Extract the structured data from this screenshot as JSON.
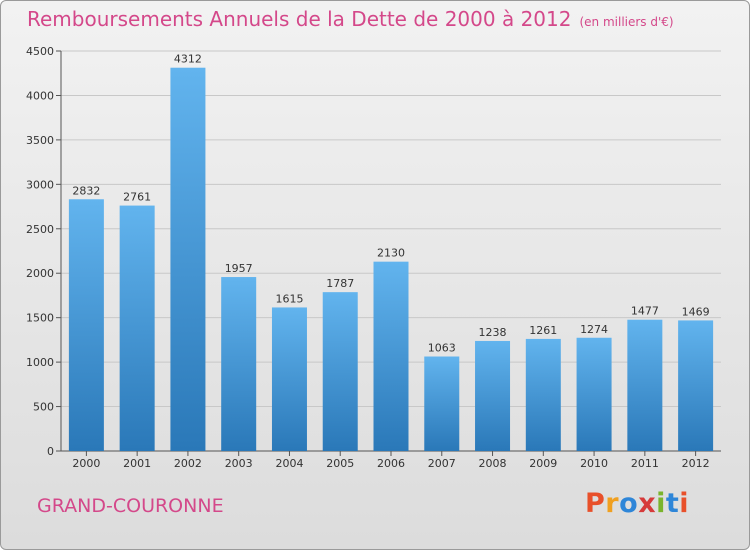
{
  "header": {
    "title": "Remboursements Annuels de la Dette de 2000 à 2012",
    "subtitle": "(en milliers d'€)"
  },
  "footer": {
    "city": "GRAND-COURONNE",
    "logo": "Proxiti"
  },
  "colors": {
    "title": "#d4488a",
    "bar_top": "#62b4ee",
    "bar_bottom": "#2a78b8",
    "logo_letters": [
      "#e8502a",
      "#f0a020",
      "#2e86d8",
      "#d63a3a",
      "#7ab42c",
      "#2e86d8",
      "#e8502a"
    ]
  },
  "chart_data": {
    "type": "bar",
    "categories": [
      "2000",
      "2001",
      "2002",
      "2003",
      "2004",
      "2005",
      "2006",
      "2007",
      "2008",
      "2009",
      "2010",
      "2011",
      "2012"
    ],
    "values": [
      2832,
      2761,
      4312,
      1957,
      1615,
      1787,
      2130,
      1063,
      1238,
      1261,
      1274,
      1477,
      1469
    ],
    "title": "Remboursements Annuels de la Dette de 2000 à 2012",
    "xlabel": "",
    "ylabel": "",
    "ylim": [
      0,
      4500
    ],
    "yticks": [
      0,
      500,
      1000,
      1500,
      2000,
      2500,
      3000,
      3500,
      4000,
      4500
    ],
    "grid": true,
    "data_labels": true
  }
}
